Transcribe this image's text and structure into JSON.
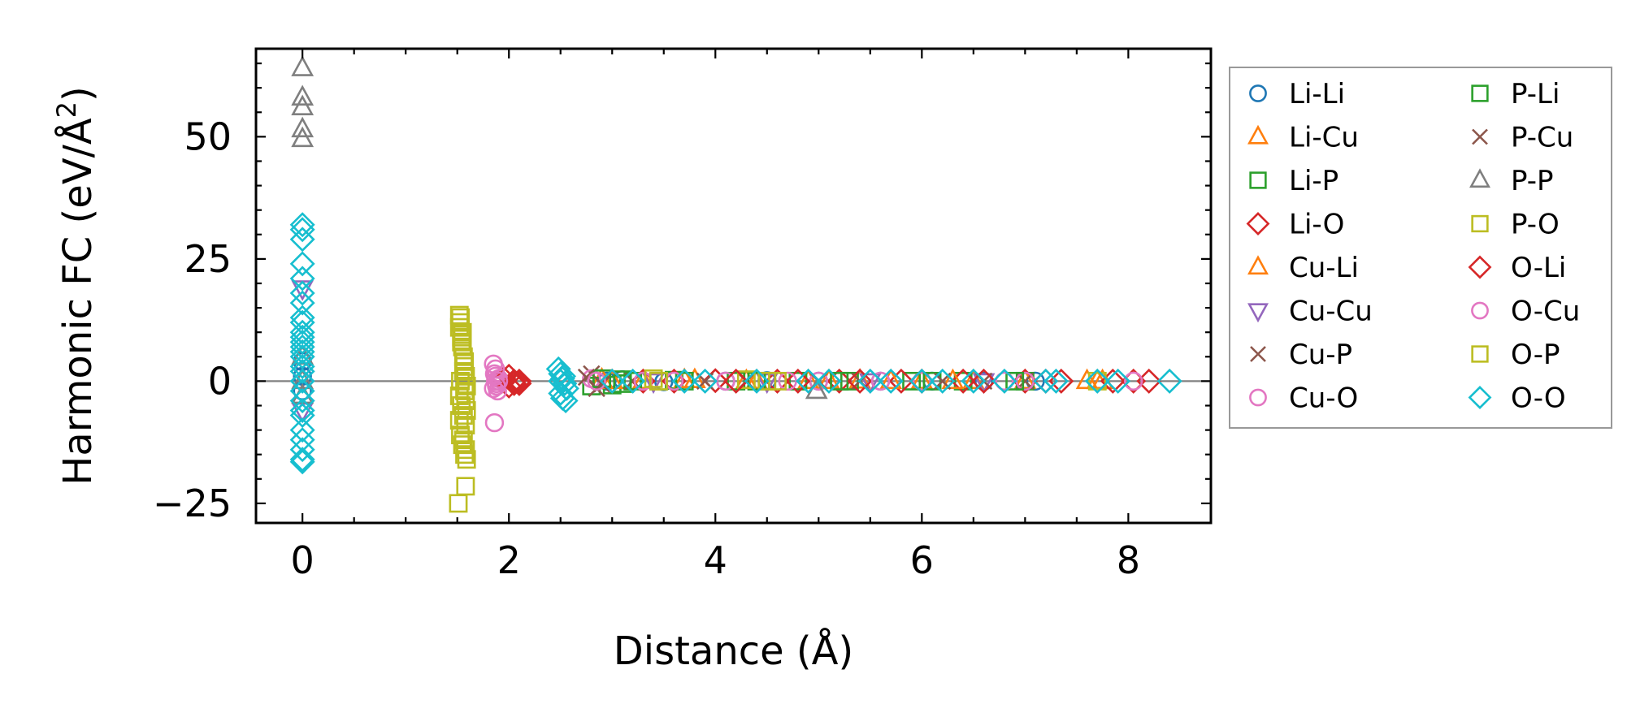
{
  "chart_data": {
    "type": "scatter",
    "xlabel": "Distance (Å)",
    "ylabel_main": "Harmonic FC (eV/Å",
    "ylabel_sup": "2",
    "ylabel_end": ")",
    "xlim": [
      -0.45,
      8.8
    ],
    "ylim": [
      -29,
      68
    ],
    "xticks": [
      0,
      2,
      4,
      6,
      8
    ],
    "yticks": [
      -25,
      0,
      25,
      50
    ],
    "ytick_labels": [
      "−25",
      "0",
      "25",
      "50"
    ],
    "xtick_labels": [
      "0",
      "2",
      "4",
      "6",
      "8"
    ],
    "legend_placement": "outside-right",
    "reference_line_y": 0,
    "series": [
      {
        "name": "Li-Li",
        "marker": "circle",
        "color": "#1f77b4",
        "x": [
          0,
          0,
          0,
          2.95,
          3.1,
          3.5,
          4.1,
          4.5,
          5.0,
          5.6,
          6.1,
          6.6,
          7.1
        ],
        "y": [
          4,
          -2,
          1,
          0,
          0.3,
          -0.1,
          0,
          0.1,
          0,
          0,
          0,
          0,
          0
        ]
      },
      {
        "name": "Li-Cu",
        "marker": "triangle-up",
        "color": "#ff7f0e",
        "x": [
          2.9,
          3.3,
          3.8,
          4.3,
          4.9,
          5.4,
          6.0,
          6.5,
          7.0,
          7.6,
          7.7
        ],
        "y": [
          0.3,
          0,
          0.2,
          0,
          0,
          0.1,
          0,
          0,
          0,
          0,
          0
        ]
      },
      {
        "name": "Li-P",
        "marker": "square",
        "color": "#2ca02c",
        "x": [
          2.8,
          2.9,
          3.0,
          3.1,
          3.2,
          3.6,
          4.2,
          4.8,
          5.3,
          5.9,
          6.4,
          7.0
        ],
        "y": [
          -1,
          0.5,
          -0.8,
          0.3,
          0,
          0.2,
          0,
          0,
          0,
          0,
          0,
          0
        ]
      },
      {
        "name": "Li-O",
        "marker": "diamond",
        "color": "#d62728",
        "x": [
          1.95,
          2.0,
          2.05,
          2.1,
          3.3,
          4.0,
          4.6,
          5.2,
          5.8,
          6.4,
          7.0,
          7.35,
          8.2
        ],
        "y": [
          0.5,
          -1,
          0,
          -0.5,
          0,
          0.1,
          0,
          0,
          0,
          0,
          0,
          0,
          0
        ]
      },
      {
        "name": "Cu-Li",
        "marker": "triangle-up",
        "color": "#ff7f0e",
        "x": [
          3.0,
          3.7,
          4.4,
          5.1,
          5.7,
          6.3,
          7.75
        ],
        "y": [
          0,
          0.2,
          0,
          0,
          0,
          0,
          0
        ]
      },
      {
        "name": "Cu-Cu",
        "marker": "triangle-down",
        "color": "#9467bd",
        "x": [
          0,
          0,
          3.4,
          4.5,
          5.5,
          6.6
        ],
        "y": [
          19,
          -6,
          0,
          0,
          0,
          0
        ]
      },
      {
        "name": "Cu-P",
        "marker": "x",
        "color": "#8c564b",
        "x": [
          2.8,
          2.85,
          3.2,
          4.3,
          5.4,
          6.6,
          7.0
        ],
        "y": [
          1.5,
          -1.5,
          0,
          0,
          0,
          0,
          0
        ]
      },
      {
        "name": "Cu-O",
        "marker": "circle",
        "color": "#e377c2",
        "x": [
          1.85,
          1.86,
          1.87,
          1.88,
          1.89,
          1.9,
          1.86,
          1.88,
          1.87,
          1.85,
          2.8,
          3.3,
          4.1,
          5.0,
          6.0,
          7.0
        ],
        "y": [
          3.5,
          1.5,
          0,
          -1,
          -2,
          0.5,
          -8.5,
          -0.5,
          1,
          -1.5,
          0.5,
          0,
          0,
          0,
          0,
          0
        ]
      },
      {
        "name": "P-Li",
        "marker": "square",
        "color": "#2ca02c",
        "x": [
          2.9,
          3.1,
          3.7,
          4.4,
          5.2,
          6.1,
          6.9
        ],
        "y": [
          0.5,
          -0.5,
          0,
          0,
          0,
          0,
          0
        ]
      },
      {
        "name": "P-Cu",
        "marker": "x",
        "color": "#8c564b",
        "x": [
          2.75,
          2.9,
          3.9,
          5.0,
          6.2
        ],
        "y": [
          0.8,
          -0.6,
          0,
          0,
          0
        ]
      },
      {
        "name": "P-P",
        "marker": "triangle-up",
        "color": "#7f7f7f",
        "x": [
          0,
          0,
          0,
          0,
          0,
          0,
          0,
          0,
          4.98
        ],
        "y": [
          64,
          58,
          56,
          51.5,
          49.5,
          5,
          -3,
          0,
          -2
        ]
      },
      {
        "name": "P-O",
        "marker": "square",
        "color": "#bcbd22",
        "x": [
          1.52,
          1.53,
          1.54,
          1.55,
          1.56,
          1.57,
          1.58,
          1.59,
          1.52,
          1.54,
          1.56,
          1.58,
          1.53,
          1.55,
          1.57,
          1.59,
          1.52,
          1.54,
          1.56,
          1.58,
          1.55,
          1.57,
          1.59,
          1.53,
          1.51,
          1.58,
          3.4,
          3.45,
          4.3,
          4.5
        ],
        "y": [
          13.5,
          12,
          9,
          7,
          5,
          3,
          1,
          -1,
          -3,
          -5,
          -7,
          -9,
          -11,
          -13,
          -15,
          -16,
          11,
          8,
          2,
          -4,
          10,
          -2,
          -6,
          0,
          -25,
          -21.5,
          0.5,
          0,
          0.3,
          0
        ]
      },
      {
        "name": "O-Li",
        "marker": "diamond",
        "color": "#d62728",
        "x": [
          2.0,
          2.05,
          2.1,
          3.0,
          3.6,
          4.2,
          4.8,
          5.4,
          6.0,
          6.6,
          7.2,
          7.85,
          8.05
        ],
        "y": [
          1,
          -0.5,
          0,
          0,
          0,
          0,
          0,
          0,
          0,
          0,
          0,
          0,
          0
        ]
      },
      {
        "name": "O-Cu",
        "marker": "circle",
        "color": "#e377c2",
        "x": [
          1.87,
          1.88,
          1.9,
          2.85,
          3.6,
          4.7,
          5.6,
          6.8,
          8.05
        ],
        "y": [
          2.5,
          -1,
          0,
          0,
          0,
          0,
          0,
          0,
          0
        ]
      },
      {
        "name": "O-P",
        "marker": "square",
        "color": "#bcbd22",
        "x": [
          1.53,
          1.55,
          1.57,
          1.52,
          1.56,
          1.58,
          3.45,
          4.6,
          7.7
        ],
        "y": [
          13,
          9.5,
          4,
          -8,
          -12,
          -14,
          0,
          0,
          0
        ]
      },
      {
        "name": "O-O",
        "marker": "diamond",
        "color": "#17becf",
        "x": [
          0,
          0,
          0,
          0,
          0,
          0,
          0,
          0,
          0,
          0,
          0,
          0,
          0,
          0,
          0,
          0,
          0,
          0,
          0,
          0,
          0,
          0,
          0,
          0,
          0,
          0,
          0,
          2.48,
          2.5,
          2.52,
          2.54,
          2.56,
          2.5,
          2.52,
          2.55,
          2.5,
          2.53,
          3.0,
          3.2,
          3.7,
          3.9,
          4.4,
          4.9,
          5.1,
          5.5,
          5.7,
          6.0,
          6.2,
          6.5,
          6.8,
          7.2,
          7.3,
          7.7,
          7.9,
          8.4
        ],
        "y": [
          32,
          31,
          29,
          24,
          21,
          18,
          16,
          13,
          12,
          10,
          9,
          8,
          7,
          6,
          5,
          3,
          2,
          0,
          -2,
          -4,
          -6,
          -7,
          -10,
          -12,
          -14,
          -16,
          -16.5,
          2.5,
          1.5,
          0.5,
          -0.5,
          -1.5,
          -2.5,
          -3.5,
          -4,
          0,
          1,
          0,
          0,
          0,
          0,
          0,
          0,
          0,
          0,
          0,
          0,
          0,
          0,
          0,
          0,
          0,
          0,
          0,
          0
        ]
      }
    ]
  }
}
